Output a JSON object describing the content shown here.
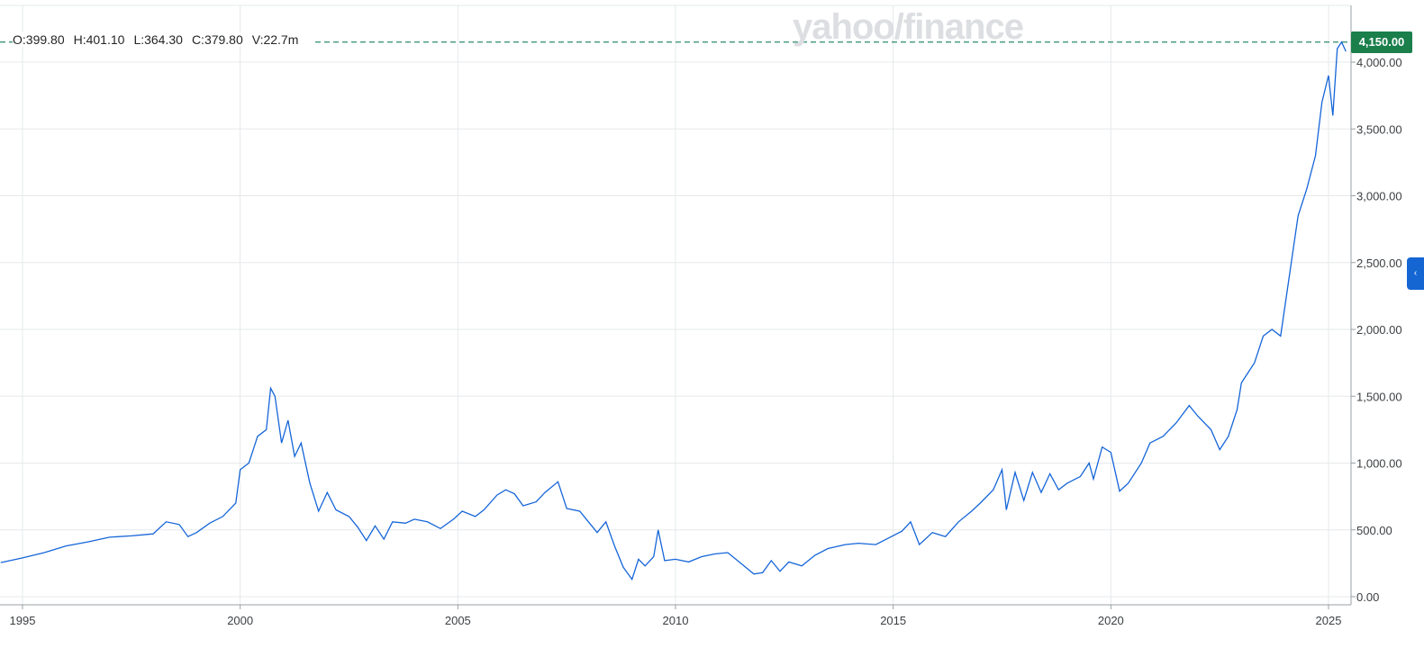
{
  "watermark": "yahoo/finance",
  "ohlc": {
    "open": "O:399.80",
    "high": "H:401.10",
    "low": "L:364.30",
    "close": "C:379.80",
    "volume": "V:22.7m"
  },
  "last_price_label": "4,150.00",
  "colors": {
    "line": "#1565d8",
    "last_price": "#1a7f4b",
    "reference_line": "#2e8b6f",
    "grid": "#e6e8eb"
  },
  "chart_data": {
    "type": "line",
    "title": "",
    "xlabel": "",
    "ylabel": "",
    "ylim": [
      -30,
      4290
    ],
    "xlim": [
      1994.5,
      2025.5
    ],
    "y_ticks": [
      {
        "value": 0,
        "label": "0.00"
      },
      {
        "value": 500,
        "label": "500.00"
      },
      {
        "value": 1000,
        "label": "1,000.00"
      },
      {
        "value": 1500,
        "label": "1,500.00"
      },
      {
        "value": 2000,
        "label": "2,000.00"
      },
      {
        "value": 2500,
        "label": "2,500.00"
      },
      {
        "value": 3000,
        "label": "3,000.00"
      },
      {
        "value": 3500,
        "label": "3,500.00"
      },
      {
        "value": 4000,
        "label": "4,000.00"
      }
    ],
    "x_ticks": [
      {
        "value": 1995,
        "label": "1995"
      },
      {
        "value": 2000,
        "label": "2000"
      },
      {
        "value": 2005,
        "label": "2005"
      },
      {
        "value": 2010,
        "label": "2010"
      },
      {
        "value": 2015,
        "label": "2015"
      },
      {
        "value": 2020,
        "label": "2020"
      },
      {
        "value": 2025,
        "label": "2025"
      }
    ],
    "grid": true,
    "reference_value": 4150,
    "series": [
      {
        "points": [
          [
            1994.5,
            255
          ],
          [
            1995.0,
            290
          ],
          [
            1995.5,
            330
          ],
          [
            1996.0,
            380
          ],
          [
            1996.5,
            410
          ],
          [
            1997.0,
            445
          ],
          [
            1997.5,
            455
          ],
          [
            1998.0,
            470
          ],
          [
            1998.3,
            560
          ],
          [
            1998.6,
            540
          ],
          [
            1998.8,
            450
          ],
          [
            1999.0,
            480
          ],
          [
            1999.3,
            550
          ],
          [
            1999.6,
            600
          ],
          [
            1999.9,
            700
          ],
          [
            2000.0,
            950
          ],
          [
            2000.2,
            1000
          ],
          [
            2000.4,
            1200
          ],
          [
            2000.6,
            1250
          ],
          [
            2000.7,
            1560
          ],
          [
            2000.8,
            1500
          ],
          [
            2000.95,
            1150
          ],
          [
            2001.1,
            1320
          ],
          [
            2001.25,
            1050
          ],
          [
            2001.4,
            1150
          ],
          [
            2001.6,
            850
          ],
          [
            2001.8,
            640
          ],
          [
            2002.0,
            780
          ],
          [
            2002.2,
            650
          ],
          [
            2002.5,
            600
          ],
          [
            2002.7,
            520
          ],
          [
            2002.9,
            420
          ],
          [
            2003.1,
            530
          ],
          [
            2003.3,
            430
          ],
          [
            2003.5,
            560
          ],
          [
            2003.8,
            550
          ],
          [
            2004.0,
            580
          ],
          [
            2004.3,
            560
          ],
          [
            2004.6,
            510
          ],
          [
            2004.9,
            580
          ],
          [
            2005.1,
            640
          ],
          [
            2005.4,
            600
          ],
          [
            2005.6,
            650
          ],
          [
            2005.9,
            760
          ],
          [
            2006.1,
            800
          ],
          [
            2006.3,
            770
          ],
          [
            2006.5,
            680
          ],
          [
            2006.8,
            710
          ],
          [
            2007.0,
            780
          ],
          [
            2007.3,
            860
          ],
          [
            2007.5,
            660
          ],
          [
            2007.8,
            640
          ],
          [
            2008.0,
            560
          ],
          [
            2008.2,
            480
          ],
          [
            2008.4,
            560
          ],
          [
            2008.6,
            380
          ],
          [
            2008.8,
            220
          ],
          [
            2009.0,
            130
          ],
          [
            2009.15,
            280
          ],
          [
            2009.3,
            230
          ],
          [
            2009.5,
            300
          ],
          [
            2009.6,
            500
          ],
          [
            2009.75,
            270
          ],
          [
            2010.0,
            280
          ],
          [
            2010.3,
            260
          ],
          [
            2010.6,
            300
          ],
          [
            2010.9,
            320
          ],
          [
            2011.2,
            330
          ],
          [
            2011.5,
            250
          ],
          [
            2011.8,
            170
          ],
          [
            2012.0,
            180
          ],
          [
            2012.2,
            270
          ],
          [
            2012.4,
            190
          ],
          [
            2012.6,
            260
          ],
          [
            2012.9,
            230
          ],
          [
            2013.2,
            310
          ],
          [
            2013.5,
            360
          ],
          [
            2013.9,
            390
          ],
          [
            2014.2,
            400
          ],
          [
            2014.6,
            390
          ],
          [
            2014.9,
            440
          ],
          [
            2015.2,
            490
          ],
          [
            2015.4,
            560
          ],
          [
            2015.6,
            390
          ],
          [
            2015.9,
            480
          ],
          [
            2016.2,
            450
          ],
          [
            2016.5,
            560
          ],
          [
            2016.8,
            640
          ],
          [
            2017.0,
            700
          ],
          [
            2017.3,
            800
          ],
          [
            2017.5,
            950
          ],
          [
            2017.6,
            650
          ],
          [
            2017.8,
            930
          ],
          [
            2018.0,
            720
          ],
          [
            2018.2,
            930
          ],
          [
            2018.4,
            780
          ],
          [
            2018.6,
            920
          ],
          [
            2018.8,
            800
          ],
          [
            2019.0,
            850
          ],
          [
            2019.3,
            900
          ],
          [
            2019.5,
            1000
          ],
          [
            2019.6,
            880
          ],
          [
            2019.8,
            1120
          ],
          [
            2020.0,
            1080
          ],
          [
            2020.2,
            790
          ],
          [
            2020.4,
            850
          ],
          [
            2020.7,
            1000
          ],
          [
            2020.9,
            1150
          ],
          [
            2021.2,
            1200
          ],
          [
            2021.5,
            1300
          ],
          [
            2021.8,
            1430
          ],
          [
            2022.0,
            1350
          ],
          [
            2022.3,
            1250
          ],
          [
            2022.5,
            1100
          ],
          [
            2022.7,
            1200
          ],
          [
            2022.9,
            1400
          ],
          [
            2023.0,
            1600
          ],
          [
            2023.3,
            1750
          ],
          [
            2023.5,
            1950
          ],
          [
            2023.7,
            2000
          ],
          [
            2023.9,
            1950
          ],
          [
            2024.1,
            2400
          ],
          [
            2024.3,
            2850
          ],
          [
            2024.5,
            3050
          ],
          [
            2024.7,
            3300
          ],
          [
            2024.85,
            3700
          ],
          [
            2025.0,
            3900
          ],
          [
            2025.1,
            3600
          ],
          [
            2025.2,
            4100
          ],
          [
            2025.3,
            4150
          ],
          [
            2025.4,
            4080
          ]
        ]
      }
    ]
  }
}
